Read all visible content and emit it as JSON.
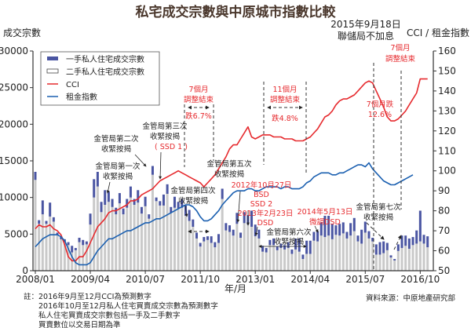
{
  "chart_data": {
    "type": "bar+line",
    "title": "私宅成交宗數與中原城市指數比較",
    "ylabel_left": "成交宗數",
    "ylabel_right": "CCI / 租金指數",
    "xlabel": "年/月",
    "ylim_left": [
      0,
      30000
    ],
    "ylim_right": [
      50,
      160
    ],
    "left_ticks": [
      "0",
      "5000",
      "10000",
      "15000",
      "20000",
      "25000",
      "30000"
    ],
    "right_ticks": [
      "50",
      "60",
      "70",
      "80",
      "90",
      "100",
      "110",
      "120",
      "130",
      "140",
      "150",
      "160"
    ],
    "x_start": "2008/01",
    "x_ticks": [
      {
        "label": "2008/01",
        "month_index": 0
      },
      {
        "label": "2009/04",
        "month_index": 15
      },
      {
        "label": "2010/07",
        "month_index": 30
      },
      {
        "label": "2011/10",
        "month_index": 45
      },
      {
        "label": "2013/01",
        "month_index": 60
      },
      {
        "label": "2014/04",
        "month_index": 75
      },
      {
        "label": "2015/07",
        "month_index": 90
      },
      {
        "label": "2016/10",
        "month_index": 105
      }
    ],
    "legend": [
      "一手私人住宅成交宗數",
      "二手私人住宅成交宗數",
      "CCI",
      "租金指數"
    ],
    "legend_placement": "top-left",
    "series": [
      {
        "name": "一手私人住宅成交宗數",
        "type": "stacked-bar",
        "color": "#4a55a2",
        "values": [
          1100,
          500,
          1900,
          400,
          1900,
          600,
          300,
          300,
          400,
          400,
          900,
          300,
          600,
          700,
          400,
          1500,
          2500,
          2000,
          1400,
          2000,
          1400,
          1100,
          900,
          1400,
          800,
          1200,
          1500,
          800,
          1700,
          900,
          1300,
          600,
          1200,
          500,
          600,
          1500,
          1300,
          800,
          1500,
          900,
          1200,
          1400,
          1500,
          1000,
          800,
          500,
          600,
          500,
          900,
          700,
          1200,
          1400,
          1000,
          900,
          800,
          1500,
          700,
          1500,
          1300,
          2200,
          1600,
          1200,
          800,
          600,
          700,
          900,
          500,
          600,
          600,
          800,
          600,
          1500,
          1800,
          600,
          1800,
          1800,
          1200,
          1400,
          1800,
          2900,
          2700,
          2100,
          1300,
          1600,
          1500,
          900,
          1700,
          1800,
          800,
          1900,
          1500,
          1000,
          500,
          1400,
          1700,
          1600,
          1000,
          300,
          200,
          900,
          1700,
          1400,
          1400,
          1100,
          1800,
          4200,
          1200,
          1500
        ]
      },
      {
        "name": "二手私人住宅成交宗數",
        "type": "stacked-bar",
        "color": "#c9c9c9",
        "values": [
          12400,
          6400,
          7700,
          6400,
          7400,
          6700,
          4900,
          4300,
          3900,
          3500,
          2500,
          2800,
          3900,
          3500,
          3600,
          6300,
          10000,
          11500,
          8000,
          9000,
          9400,
          8700,
          7700,
          9200,
          7700,
          8600,
          10000,
          9000,
          9300,
          7800,
          8800,
          7100,
          13100,
          9500,
          8900,
          8900,
          10500,
          7900,
          8600,
          8500,
          8600,
          7500,
          6800,
          6000,
          4400,
          3300,
          4000,
          4200,
          3800,
          3200,
          3800,
          9800,
          5500,
          5300,
          4800,
          6400,
          4500,
          6500,
          6300,
          6000,
          4700,
          4400,
          2600,
          2500,
          3500,
          3500,
          2800,
          3100,
          2900,
          3100,
          2300,
          2900,
          2600,
          1600,
          2300,
          2300,
          4100,
          4000,
          4800,
          4600,
          4800,
          4300,
          4900,
          4800,
          5100,
          4400,
          4800,
          5400,
          4000,
          3700,
          5200,
          4400,
          4000,
          2200,
          2200,
          2400,
          2800,
          1800,
          1400,
          2700,
          3100,
          3400,
          3000,
          3500,
          3700,
          4000,
          3700,
          3200
        ]
      },
      {
        "name": "CCI",
        "type": "line",
        "axis": "right",
        "color": "#e62a2e",
        "values": [
          71,
          73,
          72,
          72,
          73,
          71,
          70,
          68,
          63,
          57,
          55,
          55,
          57,
          57,
          60,
          64,
          68,
          72,
          74,
          76,
          79,
          80,
          80,
          81,
          82,
          83,
          85,
          85,
          86,
          88,
          89,
          90,
          91,
          93,
          95,
          96,
          97,
          98,
          99,
          100,
          99,
          98,
          97,
          96,
          95,
          94,
          92,
          94,
          96,
          98,
          101,
          104,
          107,
          111,
          113,
          113,
          116,
          119,
          122,
          117,
          116,
          117,
          118,
          118,
          118,
          117,
          117,
          117,
          116,
          116,
          116,
          115,
          115,
          115,
          116,
          117,
          119,
          121,
          124,
          127,
          128,
          130,
          133,
          135,
          136,
          136,
          137,
          138,
          140,
          142,
          144,
          145,
          144,
          140,
          136,
          132,
          127,
          125,
          125,
          126,
          128,
          130,
          133,
          136,
          139,
          146,
          146,
          146
        ]
      },
      {
        "name": "租金指數",
        "type": "line",
        "axis": "right",
        "color": "#1a5fb0",
        "values": [
          62,
          64,
          66,
          67,
          68,
          68,
          68,
          67,
          65,
          61,
          57,
          54,
          53,
          53,
          53,
          54,
          57,
          60,
          62,
          64,
          66,
          66,
          67,
          68,
          69,
          70,
          70,
          71,
          72,
          73,
          74,
          74,
          75,
          76,
          76,
          77,
          78,
          79,
          80,
          81,
          82,
          83,
          83,
          82,
          80,
          77,
          75,
          75,
          76,
          78,
          80,
          83,
          85,
          87,
          89,
          90,
          90,
          90,
          91,
          91,
          90,
          90,
          91,
          92,
          92,
          92,
          92,
          91,
          92,
          92,
          91,
          91,
          91,
          92,
          94,
          95,
          97,
          98,
          99,
          99,
          99,
          98,
          98,
          99,
          99,
          100,
          101,
          102,
          103,
          103,
          102,
          104,
          101,
          99,
          97,
          95,
          94,
          93,
          93,
          94,
          95,
          96,
          97,
          98
        ]
      }
    ]
  },
  "annotations": {
    "fed": [
      "2015年9月18日",
      "聯儲局不加息"
    ],
    "adj1": [
      "7個月",
      "調整結束",
      "跌6.7%"
    ],
    "adj2": [
      "11個月",
      "調整結束",
      "跌4.8%"
    ],
    "drop3": [
      "7個月跌",
      "12.6%"
    ],
    "adj3": [
      "7個月",
      "調整結束"
    ],
    "hkma1": [
      "金管局第一次",
      "收緊按揭"
    ],
    "hkma2": [
      "金管局第二次",
      "收緊按揭"
    ],
    "hkma3": [
      "金管局第三次",
      "收緊按揭",
      "( SSD 1 )"
    ],
    "hkma4": [
      "金管局第四次",
      "收緊按揭"
    ],
    "hkma5": [
      "金管局第五次",
      "收緊按揭"
    ],
    "bsd": [
      "2012年10月27日",
      "BSD",
      "SSD 2"
    ],
    "dsd": [
      "2013年2月23日",
      "DSD"
    ],
    "hkma6": [
      "金管局第六次",
      "收緊按揭"
    ],
    "dsd2": [
      "2014年5月13日",
      "微調DSD"
    ],
    "hkma7": [
      "金管局第七次",
      "收緊按揭"
    ]
  },
  "notes": {
    "prefix": "註：",
    "lines": [
      "2016年9月至12月CCI為預測數字",
      "2016年10月至12月私人住宅買賣成交宗數為預測數字",
      "私人住宅買賣成交宗數包括一手及二手數字",
      "買賣數位以交易日期為準"
    ],
    "source": "資料來源：中原地產研究部"
  }
}
